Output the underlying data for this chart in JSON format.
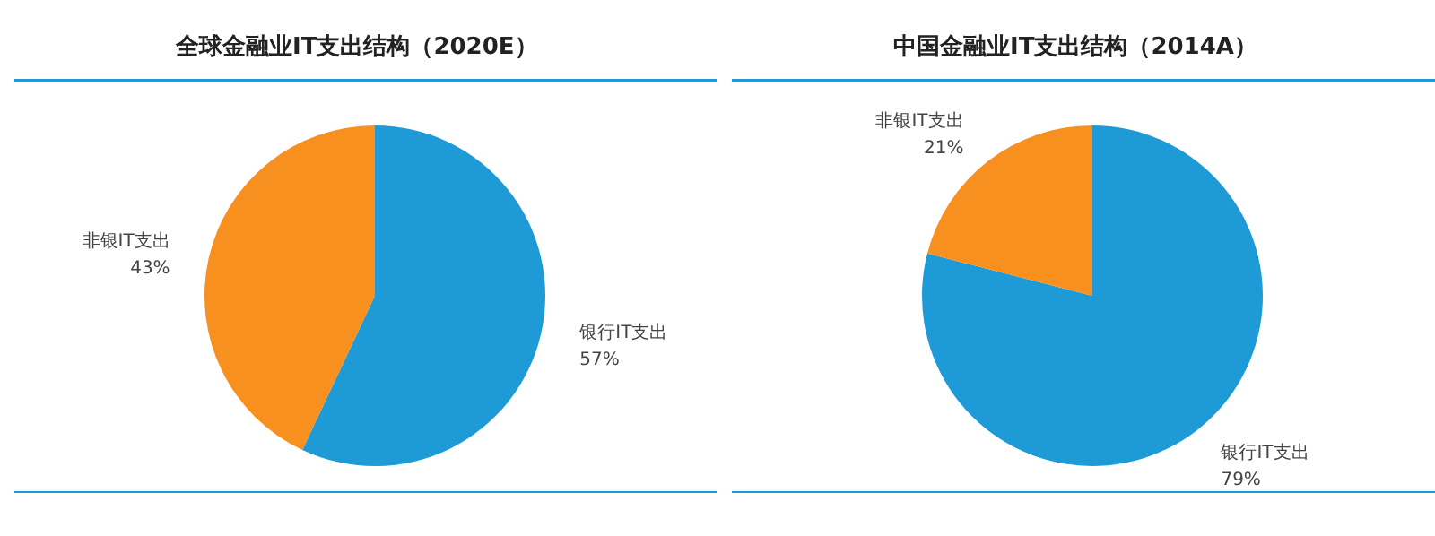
{
  "chart_data": [
    {
      "type": "pie",
      "title": "全球金融业IT支出结构（2020E）",
      "categories": [
        "银行IT支出",
        "非银IT支出"
      ],
      "values": [
        57,
        43
      ],
      "value_labels": [
        "57%",
        "43%"
      ],
      "colors": [
        "#1e9ad6",
        "#f7901e"
      ]
    },
    {
      "type": "pie",
      "title": "中国金融业IT支出结构（2014A）",
      "categories": [
        "银行IT支出",
        "非银IT支出"
      ],
      "values": [
        79,
        21
      ],
      "value_labels": [
        "79%",
        "21%"
      ],
      "colors": [
        "#1e9ad6",
        "#f7901e"
      ]
    }
  ]
}
